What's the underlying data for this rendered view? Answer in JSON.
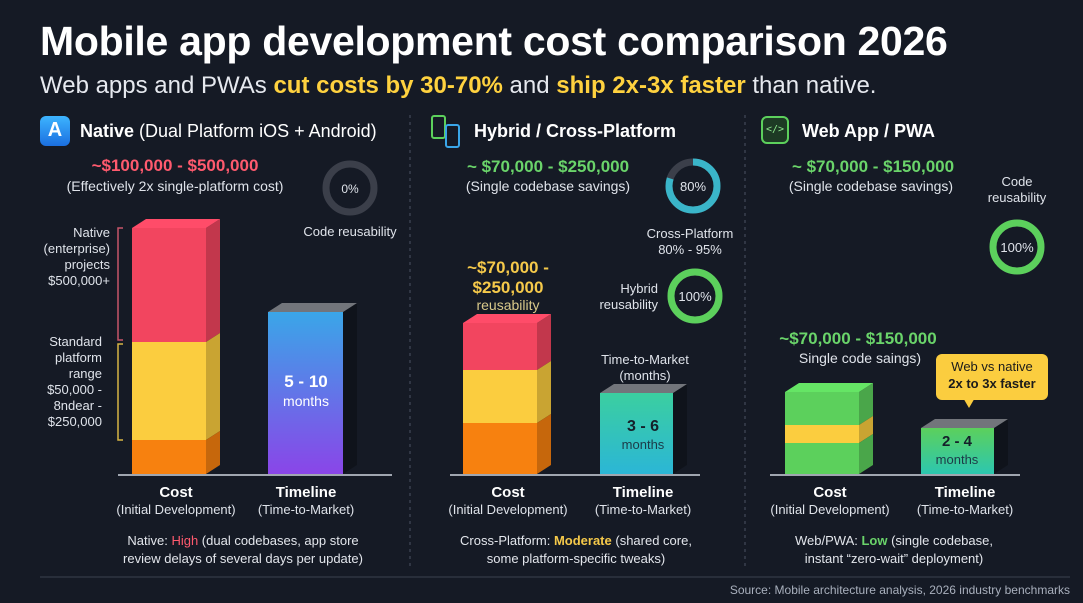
{
  "title": "Mobile app development cost comparison 2026",
  "subtitle": {
    "pre": "Web apps and PWAs ",
    "hl1": "cut costs by 30-70%",
    "mid": " and ",
    "hl2": "ship 2x-3x faster",
    "post": " than native."
  },
  "colors": {
    "background": "#151a25",
    "native_red": "#f2455f",
    "yellow": "#fbcd3f",
    "orange": "#f7810f",
    "green": "#5cd05c",
    "teal": "#3bcfa0",
    "blue": "#3aa6e8",
    "purple": "#8a45e8"
  },
  "native": {
    "icon": "app-store-icon",
    "title_bold": "Native",
    "title_rest": " (Dual Platform iOS + Android)",
    "price": "~$100,000 - $500,000",
    "price_note": "(Effectively 2x single-platform cost)",
    "reusability_value": "0%",
    "reusability_fraction": 0,
    "reusability_label": "Code reusability",
    "bracket_top": [
      "Native",
      "(enterprise)",
      "projects",
      "$500,000+"
    ],
    "bracket_bottom": [
      "Standard",
      "platform",
      "range",
      "$50,000 -",
      "8ndear -",
      "$250,000"
    ],
    "timeline_value": "5 - 10",
    "timeline_unit": "months",
    "cost_label": "Cost",
    "cost_sub": "(Initial Development)",
    "timeline_label": "Timeline",
    "timeline_sub": "(Time-to-Market)",
    "note_pre": "Native: ",
    "note_level": "High",
    "note_line1": " (dual codebases, app store",
    "note_line2": "review delays of several days per update)"
  },
  "hybrid": {
    "icon": "devices-icon",
    "title": "Hybrid / Cross-Platform",
    "price": "~ $70,000 - $250,000",
    "price_note": "(Single codebase savings)",
    "ring1_value": "80%",
    "ring1_fraction": 0.8,
    "ring1_label": [
      "Cross-Platform",
      "80% - 95%"
    ],
    "ring2_value": "100%",
    "ring2_fraction": 1,
    "ring2_label": [
      "Hybrid",
      "reusability"
    ],
    "bar_label": [
      "~$70,000 -",
      "$250,000"
    ],
    "bar_label_sub": "reusability",
    "ttm_label": [
      "Time-to-Market",
      "(months)"
    ],
    "timeline_value": "3 - 6",
    "timeline_unit": "months",
    "cost_label": "Cost",
    "cost_sub": "(Initial Development)",
    "timeline_label": "Timeline",
    "timeline_sub": "(Time-to-Market)",
    "note_pre": "Cross-Platform: ",
    "note_level": "Moderate",
    "note_line1": " (shared core,",
    "note_line2": "some platform-specific tweaks)"
  },
  "web": {
    "icon": "code-window-icon",
    "title": "Web App / PWA",
    "price": "~ $70,000 - $150,000",
    "price_note": "(Single codebase savings)",
    "ring_label": [
      "Code",
      "reusability"
    ],
    "ring_value": "100%",
    "ring_fraction": 1,
    "bar_price": "~$70,000 - $150,000",
    "bar_note": "Single code saings)",
    "callout": [
      "Web vs native",
      "2x to 3x faster"
    ],
    "timeline_value": "2 - 4",
    "timeline_unit": "months",
    "cost_label": "Cost",
    "cost_sub": "(Initial Development)",
    "timeline_label": "Timeline",
    "timeline_sub": "(Time-to-Market)",
    "note_pre": "Web/PWA: ",
    "note_level": "Low",
    "note_line1": " (single codebase,",
    "note_line2": "instant “zero-wait” deployment)"
  },
  "source": "Source: Mobile architecture analysis, 2026 industry benchmarks"
}
